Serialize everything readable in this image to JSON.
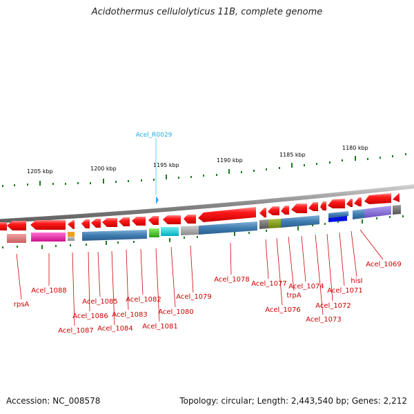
{
  "title": "Acidothermus cellulolyticus 11B, complete genome",
  "footer": {
    "accession": "Accession: NC_008578",
    "topology": "Topology: circular; Length: 2,443,540 bp; Genes: 2,212"
  },
  "scale_labels": [
    "1205 kbp",
    "1200 kbp",
    "1195 kbp",
    "1190 kbp",
    "1185 kbp",
    "1180 kbp"
  ],
  "rna_label": "Acel_R0029",
  "gene_labels": [
    "rpsA",
    "Acel_1088",
    "Acel_1087",
    "Acel_1086",
    "Acel_1085",
    "Acel_1084",
    "Acel_1083",
    "Acel_1082",
    "Acel_1081",
    "Acel_1080",
    "Acel_1079",
    "Acel_1078",
    "Acel_1077",
    "Acel_1076",
    "trpA",
    "Acel_1074",
    "Acel_1073",
    "Acel_1072",
    "Acel_1071",
    "hisI",
    "Acel_1069"
  ],
  "colors": {
    "gene": "#ff0000",
    "rna": "#33ccee",
    "label": "#cc0000",
    "tick": "#1a7a1a",
    "backbone": "#888888"
  }
}
